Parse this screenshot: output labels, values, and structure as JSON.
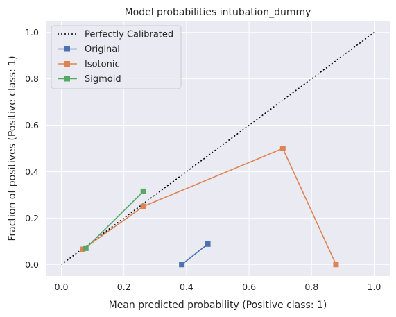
{
  "chart_data": {
    "type": "line",
    "title": "Model probabilities intubation_dummy",
    "xlabel": "Mean predicted probability (Positive class: 1)",
    "ylabel": "Fraction of positives (Positive class: 1)",
    "xlim": [
      -0.05,
      1.05
    ],
    "ylim": [
      -0.05,
      1.05
    ],
    "xticks": [
      "0.0",
      "0.2",
      "0.4",
      "0.6",
      "0.8",
      "1.0"
    ],
    "yticks": [
      "0.0",
      "0.2",
      "0.4",
      "0.6",
      "0.8",
      "1.0"
    ],
    "grid": true,
    "legend_position": "top-left",
    "series": [
      {
        "name": "Perfectly Calibrated",
        "style": "dotted",
        "marker": "none",
        "color": "#000000",
        "x": [
          0.0,
          1.0
        ],
        "y": [
          0.0,
          1.0
        ]
      },
      {
        "name": "Original",
        "style": "solid",
        "marker": "square",
        "color": "#4c72b0",
        "x": [
          0.385,
          0.468
        ],
        "y": [
          0.0,
          0.088
        ]
      },
      {
        "name": "Isotonic",
        "style": "solid",
        "marker": "square",
        "color": "#dd8452",
        "x": [
          0.068,
          0.262,
          0.708,
          0.878
        ],
        "y": [
          0.065,
          0.25,
          0.5,
          0.0
        ]
      },
      {
        "name": "Sigmoid",
        "style": "solid",
        "marker": "square",
        "color": "#55a868",
        "x": [
          0.078,
          0.262
        ],
        "y": [
          0.07,
          0.315
        ]
      }
    ]
  }
}
